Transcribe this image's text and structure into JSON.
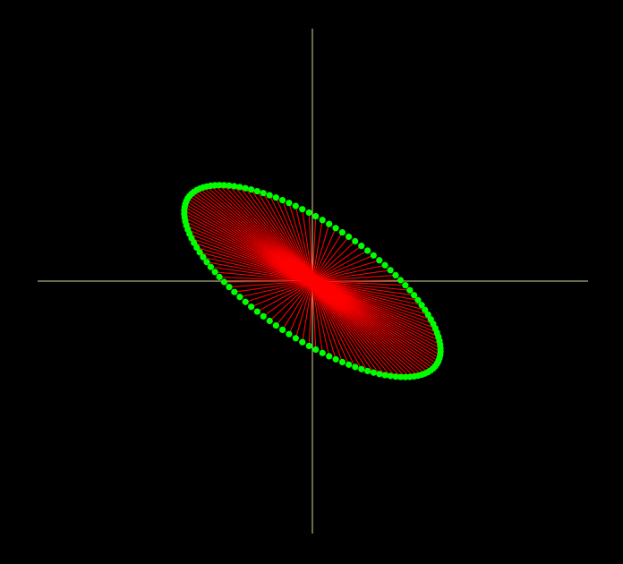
{
  "scene": {
    "background_color": "#000000",
    "axis_color": "#d8d890",
    "ray_color": "#ff0000",
    "point_color": "#00ff00"
  },
  "chart_data": {
    "type": "scatter",
    "title": "",
    "xlabel": "",
    "ylabel": "",
    "xlim": [
      -1.0,
      1.0
    ],
    "ylim": [
      -1.0,
      1.0
    ],
    "grid": false,
    "legend": "none",
    "axes": "crosshair-through-origin",
    "ellipse": {
      "center": [
        0.0,
        0.0
      ],
      "semi_major": 0.56,
      "semi_minor": 0.22,
      "rotation_deg": -37,
      "point_count": 120
    },
    "rays_from_origin_to_points": true
  }
}
